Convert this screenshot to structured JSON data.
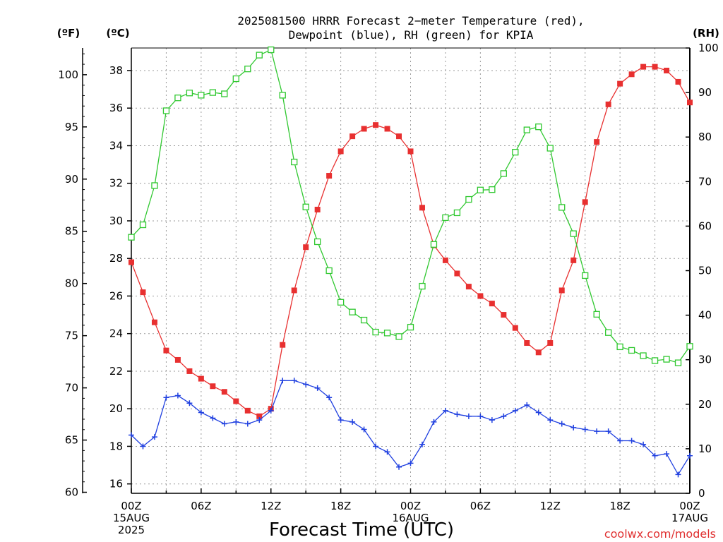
{
  "chart_data": {
    "type": "line",
    "title_line1": "2025081500 HRRR Forecast 2−meter Temperature (red),",
    "title_line2": "Dewpoint (blue), RH (green) for KPIA",
    "unit_f": "(ºF)",
    "unit_c": "(ºC)",
    "unit_rh": "(RH)",
    "xlabel": "Forecast Time (UTC)",
    "credit": "coolwx.com/models",
    "x_range_hours": [
      0,
      48
    ],
    "y_celsius_range": [
      15.5,
      39.2
    ],
    "y_fahrenheit_range": [
      59.9,
      102.56
    ],
    "rh_range": [
      0,
      100
    ],
    "x_ticks": [
      {
        "hour": 0,
        "lines": [
          "00Z",
          "15AUG",
          "2025"
        ]
      },
      {
        "hour": 6,
        "lines": [
          "06Z"
        ]
      },
      {
        "hour": 12,
        "lines": [
          "12Z"
        ]
      },
      {
        "hour": 18,
        "lines": [
          "18Z"
        ]
      },
      {
        "hour": 24,
        "lines": [
          "00Z",
          "16AUG"
        ]
      },
      {
        "hour": 30,
        "lines": [
          "06Z"
        ]
      },
      {
        "hour": 36,
        "lines": [
          "12Z"
        ]
      },
      {
        "hour": 42,
        "lines": [
          "18Z"
        ]
      },
      {
        "hour": 48,
        "lines": [
          "00Z",
          "17AUG"
        ]
      }
    ],
    "celsius_ticks": [
      16,
      18,
      20,
      22,
      24,
      26,
      28,
      30,
      32,
      34,
      36,
      38
    ],
    "fahrenheit_ticks": [
      60,
      65,
      70,
      75,
      80,
      85,
      90,
      95,
      100
    ],
    "rh_ticks": [
      0,
      10,
      20,
      30,
      40,
      50,
      60,
      70,
      80,
      90,
      100
    ],
    "grid": true,
    "series": [
      {
        "name": "Temperature",
        "units": "ºC",
        "axis": "celsius",
        "color": "#e83030",
        "marker": "filled-square",
        "values": [
          27.8,
          26.2,
          24.6,
          23.1,
          22.6,
          22.0,
          21.6,
          21.2,
          20.9,
          20.4,
          19.9,
          19.6,
          20.0,
          23.4,
          26.3,
          28.6,
          30.6,
          32.4,
          33.7,
          34.5,
          34.9,
          35.1,
          34.9,
          34.5,
          33.7,
          30.7,
          28.7,
          27.9,
          27.2,
          26.5,
          26.0,
          25.6,
          25.0,
          24.3,
          23.5,
          23.0,
          23.5,
          26.3,
          27.9,
          31.0,
          34.2,
          36.2,
          37.3,
          37.8,
          38.2,
          38.2,
          38.0,
          37.4,
          36.3
        ]
      },
      {
        "name": "Dewpoint",
        "units": "ºC",
        "axis": "celsius",
        "color": "#2040e0",
        "marker": "plus",
        "values": [
          18.6,
          18.0,
          18.5,
          20.6,
          20.7,
          20.3,
          19.8,
          19.5,
          19.2,
          19.3,
          19.2,
          19.4,
          19.9,
          21.5,
          21.5,
          21.3,
          21.1,
          20.6,
          19.4,
          19.3,
          18.9,
          18.0,
          17.7,
          16.9,
          17.1,
          18.1,
          19.3,
          19.9,
          19.7,
          19.6,
          19.6,
          19.4,
          19.6,
          19.9,
          20.2,
          19.8,
          19.4,
          19.2,
          19.0,
          18.9,
          18.8,
          18.8,
          18.3,
          18.3,
          18.1,
          17.5,
          17.6,
          16.5,
          17.5
        ]
      },
      {
        "name": "RH",
        "units": "%",
        "axis": "rh",
        "color": "#30c830",
        "marker": "open-square",
        "values": [
          57.5,
          60.3,
          69.1,
          85.9,
          88.8,
          89.9,
          89.4,
          90.0,
          89.7,
          93.1,
          95.3,
          98.4,
          99.6,
          89.4,
          74.4,
          64.3,
          56.5,
          50.0,
          42.9,
          40.7,
          38.9,
          36.2,
          36.0,
          35.2,
          37.3,
          46.5,
          55.9,
          61.9,
          63.0,
          66.0,
          68.1,
          68.2,
          71.8,
          76.6,
          81.6,
          82.3,
          77.5,
          64.2,
          58.3,
          48.9,
          40.2,
          36.1,
          32.9,
          32.1,
          30.9,
          29.8,
          30.1,
          29.3,
          33.0
        ]
      }
    ]
  }
}
